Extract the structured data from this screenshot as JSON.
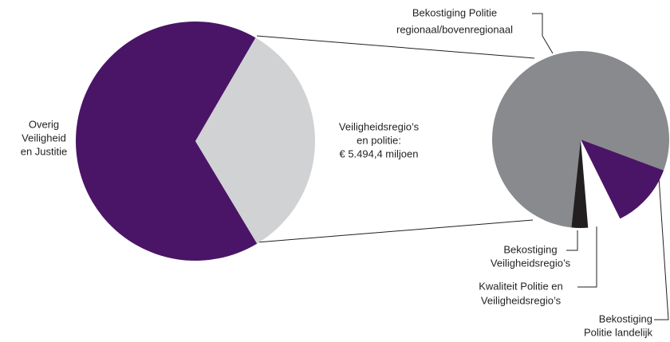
{
  "chart_data": [
    {
      "type": "pie",
      "labels": [
        [
          "Overig",
          "Veiligheid",
          "en Justitie"
        ],
        [
          "Veiligheidsregio’s",
          "en politie:",
          "€ 5.494,4 miljoen"
        ]
      ],
      "values": [
        67,
        33
      ],
      "colors": [
        "#4a1566",
        "#d1d2d4"
      ]
    },
    {
      "type": "pie",
      "labels": [
        [
          "Bekostiging Politie",
          "regionaal/bovenregionaal"
        ],
        [
          "Bekostiging",
          "Politie landelijk"
        ],
        [
          "Kwaliteit Politie en",
          "Veiligheidsregio’s"
        ],
        [
          "Bekostiging",
          "Veiligheidsregio’s"
        ]
      ],
      "values": [
        79,
        12,
        6,
        3
      ],
      "colors": [
        "#898a8d",
        "#4a1566",
        "#ffffff",
        "#231f20"
      ]
    }
  ]
}
